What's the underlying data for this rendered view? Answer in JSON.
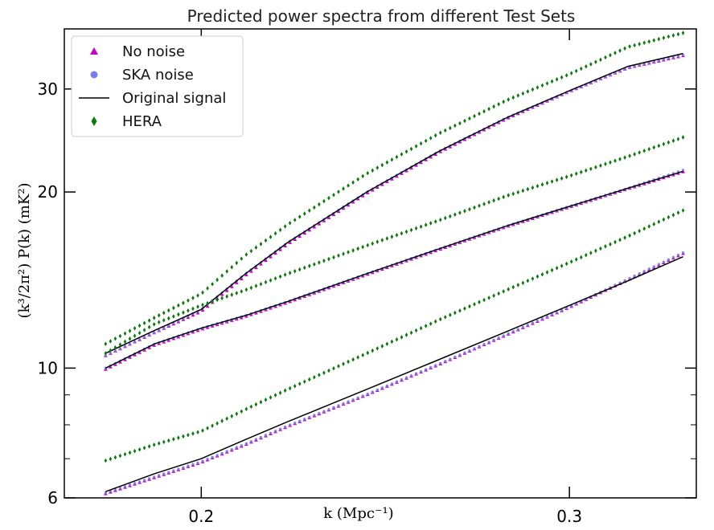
{
  "chart_data": {
    "type": "scatter",
    "title": "Predicted power spectra from different Test Sets",
    "xlabel": "k (Mpc⁻¹)",
    "ylabel": "(k³/2π²) P(k) (mK²)",
    "xscale": "log",
    "yscale": "log",
    "xlim": [
      0.172,
      0.345
    ],
    "ylim": [
      6.0,
      38.0
    ],
    "x_ticks": [
      0.2,
      0.3
    ],
    "x_tick_labels": [
      "0.2",
      "0.3"
    ],
    "y_ticks": [
      6,
      10,
      20,
      30
    ],
    "y_tick_labels": [
      "6",
      "10",
      "20",
      "30"
    ],
    "legend": {
      "position": "top-left",
      "entries": [
        {
          "label": "No noise",
          "marker": "triangle",
          "color": "#c400c4"
        },
        {
          "label": "SKA noise",
          "marker": "circle",
          "color": "#7b7bf0"
        },
        {
          "label": "Original signal",
          "marker": "line",
          "color": "#000000"
        },
        {
          "label": "HERA",
          "marker": "diamond",
          "color": "#0a7a0a"
        }
      ]
    },
    "test_sets": [
      {
        "k": [
          0.18,
          0.19,
          0.2,
          0.21,
          0.22,
          0.24,
          0.26,
          0.28,
          0.3,
          0.32,
          0.34
        ],
        "original": [
          10.6,
          11.6,
          12.6,
          14.5,
          16.4,
          20.0,
          23.5,
          26.8,
          29.8,
          32.8,
          34.5
        ],
        "no_noise": [
          10.5,
          11.5,
          12.5,
          14.4,
          16.3,
          19.9,
          23.4,
          26.7,
          29.7,
          32.6,
          34.2
        ],
        "ska_noise": [
          10.5,
          11.5,
          12.6,
          14.5,
          16.4,
          20.0,
          23.5,
          26.8,
          29.7,
          32.6,
          34.3
        ],
        "hera": [
          11.0,
          12.2,
          13.4,
          15.6,
          17.6,
          21.5,
          25.2,
          28.7,
          31.8,
          35.4,
          37.4
        ]
      },
      {
        "k": [
          0.18,
          0.19,
          0.2,
          0.21,
          0.22,
          0.24,
          0.26,
          0.28,
          0.3,
          0.32,
          0.34
        ],
        "original": [
          10.0,
          11.0,
          11.7,
          12.3,
          13.0,
          14.5,
          16.0,
          17.5,
          18.9,
          20.3,
          21.7
        ],
        "no_noise": [
          9.95,
          10.95,
          11.65,
          12.25,
          12.95,
          14.45,
          15.95,
          17.45,
          18.85,
          20.25,
          21.65
        ],
        "ska_noise": [
          10.0,
          11.0,
          11.7,
          12.3,
          13.0,
          14.5,
          16.0,
          17.5,
          18.9,
          20.3,
          21.8
        ],
        "hera": [
          10.6,
          11.9,
          12.8,
          13.6,
          14.5,
          16.2,
          17.9,
          19.7,
          21.3,
          23.0,
          24.8
        ]
      },
      {
        "k": [
          0.18,
          0.19,
          0.2,
          0.21,
          0.22,
          0.24,
          0.26,
          0.28,
          0.3,
          0.32,
          0.34
        ],
        "original": [
          6.15,
          6.6,
          7.0,
          7.55,
          8.1,
          9.2,
          10.35,
          11.55,
          12.8,
          14.1,
          15.5
        ],
        "no_noise": [
          6.1,
          6.5,
          6.9,
          7.4,
          7.95,
          9.0,
          10.15,
          11.4,
          12.7,
          14.15,
          15.7
        ],
        "ska_noise": [
          6.12,
          6.52,
          6.92,
          7.42,
          7.97,
          9.02,
          10.17,
          11.42,
          12.72,
          14.2,
          15.75
        ],
        "hera": [
          6.95,
          7.4,
          7.8,
          8.5,
          9.2,
          10.6,
          12.1,
          13.6,
          15.15,
          16.8,
          18.6
        ]
      }
    ]
  }
}
